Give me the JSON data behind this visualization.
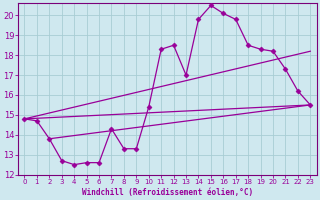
{
  "xlabel": "Windchill (Refroidissement éolien,°C)",
  "bg_color": "#cfe8ef",
  "line_color": "#990099",
  "grid_color": "#a8cdd4",
  "spine_color": "#7a007a",
  "xlim": [
    -0.5,
    23.5
  ],
  "ylim": [
    12,
    20.6
  ],
  "yticks": [
    12,
    13,
    14,
    15,
    16,
    17,
    18,
    19,
    20
  ],
  "xticks": [
    0,
    1,
    2,
    3,
    4,
    5,
    6,
    7,
    8,
    9,
    10,
    11,
    12,
    13,
    14,
    15,
    16,
    17,
    18,
    19,
    20,
    21,
    22,
    23
  ],
  "main_x": [
    0,
    1,
    2,
    3,
    4,
    5,
    6,
    7,
    8,
    9,
    10,
    11,
    12,
    13,
    14,
    15,
    16,
    17,
    18,
    19,
    20,
    21,
    22,
    23
  ],
  "main_y": [
    14.8,
    14.7,
    13.8,
    12.7,
    12.5,
    12.6,
    12.6,
    14.3,
    13.3,
    13.3,
    15.4,
    18.3,
    18.5,
    17.0,
    19.8,
    20.5,
    20.1,
    19.8,
    18.5,
    18.3,
    18.2,
    17.3,
    16.2,
    15.5
  ],
  "trend1_x": [
    0,
    23
  ],
  "trend1_y": [
    14.8,
    15.5
  ],
  "trend2_x": [
    0,
    23
  ],
  "trend2_y": [
    14.8,
    18.2
  ],
  "trend3_x": [
    2,
    23
  ],
  "trend3_y": [
    13.8,
    15.5
  ],
  "marker": "D",
  "markersize": 2.5,
  "linewidth": 0.9
}
